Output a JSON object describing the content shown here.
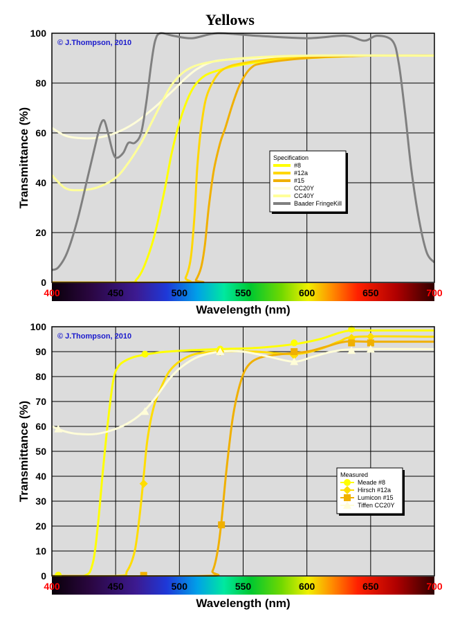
{
  "page_title": "Yellows",
  "chart_data": [
    {
      "type": "line",
      "copyright": "© J.Thompson, 2010",
      "xlabel": "Wavelength (nm)",
      "ylabel": "Transmittance (%)",
      "xlim": [
        400,
        700
      ],
      "ylim": [
        0,
        100
      ],
      "xticks": [
        400,
        450,
        500,
        550,
        600,
        650,
        700
      ],
      "yticks": [
        0,
        20,
        40,
        60,
        80,
        100
      ],
      "grid": true,
      "legend_title": "Specification",
      "legend_position": "center-right",
      "series": [
        {
          "name": "#8",
          "color": "#ffff00",
          "width": 3,
          "points": [
            [
              400,
              0
            ],
            [
              460,
              0
            ],
            [
              466,
              1
            ],
            [
              472,
              6
            ],
            [
              480,
              18
            ],
            [
              488,
              36
            ],
            [
              494,
              52
            ],
            [
              500,
              64
            ],
            [
              506,
              73
            ],
            [
              512,
              79
            ],
            [
              520,
              83
            ],
            [
              530,
              85
            ],
            [
              545,
              87
            ],
            [
              570,
              89
            ],
            [
              600,
              90
            ],
            [
              650,
              91
            ],
            [
              700,
              91
            ]
          ]
        },
        {
          "name": "#12a",
          "color": "#ffd700",
          "width": 3,
          "points": [
            [
              400,
              0
            ],
            [
              500,
              0
            ],
            [
              505,
              2
            ],
            [
              509,
              10
            ],
            [
              512,
              28
            ],
            [
              514,
              46
            ],
            [
              517,
              62
            ],
            [
              521,
              74
            ],
            [
              528,
              82
            ],
            [
              536,
              86
            ],
            [
              550,
              88
            ],
            [
              580,
              90
            ],
            [
              620,
              91
            ],
            [
              700,
              91
            ]
          ]
        },
        {
          "name": "#15",
          "color": "#f0b000",
          "width": 3,
          "points": [
            [
              400,
              0
            ],
            [
              510,
              0
            ],
            [
              513,
              1
            ],
            [
              517,
              6
            ],
            [
              520,
              15
            ],
            [
              523,
              30
            ],
            [
              527,
              45
            ],
            [
              532,
              56
            ],
            [
              536,
              62
            ],
            [
              542,
              72
            ],
            [
              548,
              80
            ],
            [
              556,
              86
            ],
            [
              566,
              88
            ],
            [
              600,
              90
            ],
            [
              650,
              91
            ],
            [
              700,
              91
            ]
          ]
        },
        {
          "name": "CC20Y",
          "color": "#fffdd8",
          "width": 3,
          "points": [
            [
              400,
              62
            ],
            [
              410,
              59
            ],
            [
              420,
              58
            ],
            [
              435,
              58
            ],
            [
              450,
              60
            ],
            [
              465,
              64
            ],
            [
              480,
              70
            ],
            [
              495,
              77
            ],
            [
              505,
              82
            ],
            [
              515,
              86
            ],
            [
              530,
              89
            ],
            [
              560,
              90
            ],
            [
              600,
              91
            ],
            [
              700,
              91
            ]
          ]
        },
        {
          "name": "CC40Y",
          "color": "#ffff99",
          "width": 3,
          "points": [
            [
              400,
              43
            ],
            [
              410,
              38
            ],
            [
              420,
              37
            ],
            [
              435,
              38
            ],
            [
              450,
              42
            ],
            [
              460,
              48
            ],
            [
              470,
              56
            ],
            [
              480,
              66
            ],
            [
              488,
              74
            ],
            [
              495,
              80
            ],
            [
              505,
              85
            ],
            [
              520,
              88
            ],
            [
              550,
              90
            ],
            [
              600,
              91
            ],
            [
              700,
              91
            ]
          ]
        },
        {
          "name": "Baader FringeKill",
          "color": "#808080",
          "width": 3,
          "points": [
            [
              400,
              5
            ],
            [
              405,
              6
            ],
            [
              412,
              12
            ],
            [
              420,
              25
            ],
            [
              428,
              42
            ],
            [
              434,
              55
            ],
            [
              438,
              63
            ],
            [
              441,
              65
            ],
            [
              444,
              60
            ],
            [
              448,
              52
            ],
            [
              451,
              50
            ],
            [
              456,
              52
            ],
            [
              460,
              56
            ],
            [
              465,
              56
            ],
            [
              470,
              60
            ],
            [
              474,
              72
            ],
            [
              478,
              88
            ],
            [
              481,
              97
            ],
            [
              485,
              100
            ],
            [
              495,
              99
            ],
            [
              510,
              98
            ],
            [
              530,
              100
            ],
            [
              560,
              99
            ],
            [
              600,
              98
            ],
            [
              630,
              99
            ],
            [
              645,
              97
            ],
            [
              655,
              99
            ],
            [
              667,
              97
            ],
            [
              672,
              88
            ],
            [
              677,
              68
            ],
            [
              682,
              45
            ],
            [
              688,
              25
            ],
            [
              694,
              12
            ],
            [
              700,
              8
            ]
          ]
        }
      ]
    },
    {
      "type": "line",
      "copyright": "© J.Thompson, 2010",
      "xlabel": "Wavelength (nm)",
      "ylabel": "Transmittance (%)",
      "xlim": [
        400,
        700
      ],
      "ylim": [
        0,
        100
      ],
      "xticks": [
        400,
        450,
        500,
        550,
        600,
        650,
        700
      ],
      "yticks": [
        0,
        10,
        20,
        30,
        40,
        50,
        60,
        70,
        80,
        90,
        100
      ],
      "grid": true,
      "legend_title": "Measured",
      "legend_position": "lower-right",
      "series": [
        {
          "name": "Meade #8",
          "color": "#ffff00",
          "marker": "circle",
          "points": [
            [
              400,
              0
            ],
            [
              425,
              0
            ],
            [
              432,
              5
            ],
            [
              436,
              20
            ],
            [
              440,
              42
            ],
            [
              444,
              62
            ],
            [
              448,
              78
            ],
            [
              452,
              84
            ],
            [
              460,
              87
            ],
            [
              470,
              88.5
            ],
            [
              490,
              90
            ],
            [
              530,
              91
            ],
            [
              560,
              91.5
            ],
            [
              590,
              93
            ],
            [
              610,
              95
            ],
            [
              625,
              97.5
            ],
            [
              635,
              98.5
            ],
            [
              650,
              98.5
            ],
            [
              700,
              98.5
            ]
          ],
          "markers": [
            [
              405,
              0.3
            ],
            [
              473,
              89
            ],
            [
              532,
              91
            ],
            [
              590,
              93.5
            ],
            [
              635,
              99
            ]
          ]
        },
        {
          "name": "Hirsch #12a",
          "color": "#ffdd00",
          "marker": "diamond",
          "points": [
            [
              400,
              0
            ],
            [
              452,
              0
            ],
            [
              459,
              2
            ],
            [
              465,
              10
            ],
            [
              469,
              25
            ],
            [
              472,
              40
            ],
            [
              475,
              55
            ],
            [
              480,
              68
            ],
            [
              486,
              76
            ],
            [
              492,
              82
            ],
            [
              500,
              86
            ],
            [
              512,
              89
            ],
            [
              530,
              90
            ],
            [
              560,
              90
            ],
            [
              590,
              89
            ],
            [
              610,
              91
            ],
            [
              625,
              94
            ],
            [
              640,
              96
            ],
            [
              700,
              96
            ]
          ],
          "markers": [
            [
              472,
              37
            ],
            [
              532,
              90
            ],
            [
              590,
              88.5
            ],
            [
              635,
              95.5
            ],
            [
              650,
              96
            ]
          ]
        },
        {
          "name": "Lumicon #15",
          "color": "#f0b000",
          "marker": "square",
          "points": [
            [
              400,
              0
            ],
            [
              520,
              0
            ],
            [
              526,
              2
            ],
            [
              530,
              10
            ],
            [
              533,
              22
            ],
            [
              536,
              38
            ],
            [
              539,
              52
            ],
            [
              542,
              64
            ],
            [
              546,
              74
            ],
            [
              551,
              82
            ],
            [
              557,
              86
            ],
            [
              566,
              88
            ],
            [
              580,
              89
            ],
            [
              600,
              90
            ],
            [
              615,
              92
            ],
            [
              630,
              94
            ],
            [
              650,
              94
            ],
            [
              700,
              94
            ]
          ],
          "markers": [
            [
              472,
              0.2
            ],
            [
              533,
              20.5
            ],
            [
              590,
              90
            ],
            [
              635,
              93.5
            ],
            [
              650,
              93.5
            ]
          ]
        },
        {
          "name": "Tiffen CC20Y",
          "color": "#fffdd8",
          "marker": "triangle",
          "points": [
            [
              400,
              60
            ],
            [
              410,
              58
            ],
            [
              420,
              57
            ],
            [
              435,
              57
            ],
            [
              450,
              59
            ],
            [
              462,
              62
            ],
            [
              472,
              66
            ],
            [
              482,
              72
            ],
            [
              492,
              79
            ],
            [
              502,
              84
            ],
            [
              515,
              88
            ],
            [
              532,
              90
            ],
            [
              550,
              90
            ],
            [
              570,
              88
            ],
            [
              590,
              86
            ],
            [
              605,
              88
            ],
            [
              620,
              90
            ],
            [
              640,
              91
            ],
            [
              700,
              91
            ]
          ],
          "markers": [
            [
              405,
              59
            ],
            [
              473,
              66
            ],
            [
              532,
              90
            ],
            [
              590,
              86
            ],
            [
              635,
              90.5
            ],
            [
              650,
              91
            ]
          ]
        }
      ]
    }
  ]
}
